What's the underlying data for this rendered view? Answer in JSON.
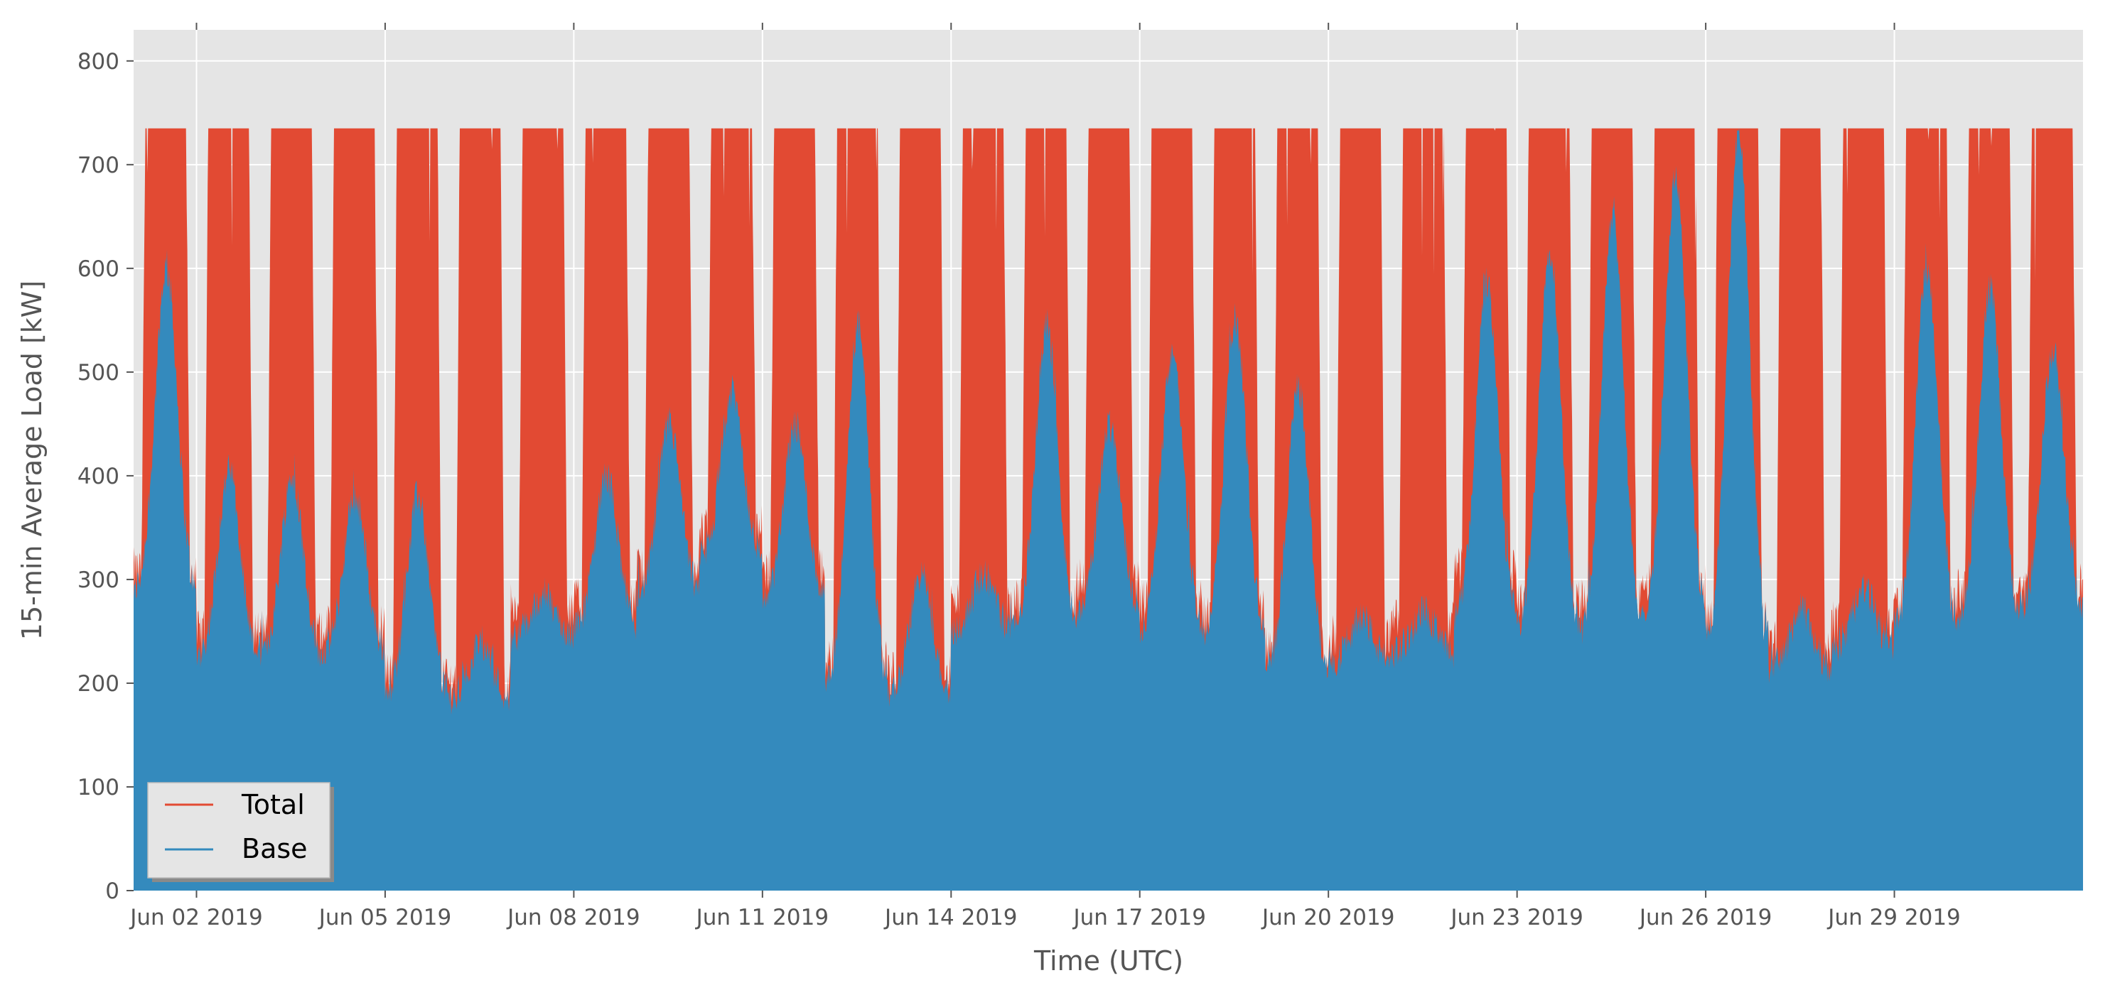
{
  "chart_data": {
    "type": "area",
    "title": "",
    "xlabel": "Time (UTC)",
    "ylabel": "15-min Average Load [kW]",
    "ylim": [
      0,
      830
    ],
    "xlim": [
      "2019-06-01",
      "2019-07-02"
    ],
    "yticks": [
      0,
      100,
      200,
      300,
      400,
      500,
      600,
      700,
      800
    ],
    "xticks": [
      {
        "date": "2019-06-02",
        "label": "Jun 02 2019"
      },
      {
        "date": "2019-06-05",
        "label": "Jun 05 2019"
      },
      {
        "date": "2019-06-08",
        "label": "Jun 08 2019"
      },
      {
        "date": "2019-06-11",
        "label": "Jun 11 2019"
      },
      {
        "date": "2019-06-14",
        "label": "Jun 14 2019"
      },
      {
        "date": "2019-06-17",
        "label": "Jun 17 2019"
      },
      {
        "date": "2019-06-20",
        "label": "Jun 20 2019"
      },
      {
        "date": "2019-06-23",
        "label": "Jun 23 2019"
      },
      {
        "date": "2019-06-26",
        "label": "Jun 26 2019"
      },
      {
        "date": "2019-06-29",
        "label": "Jun 29 2019"
      }
    ],
    "grid": true,
    "legend_position": "lower-left",
    "series": [
      {
        "name": "Total",
        "color": "#e24a33",
        "description": "Daily peak capped near 735 kW; overnight minimum per day",
        "daily_peak": 735,
        "daily_min": [
          300,
          240,
          240,
          245,
          200,
          195,
          265,
          270,
          300,
          340,
          300,
          215,
          200,
          270,
          270,
          290,
          270,
          260,
          225,
          235,
          250,
          300,
          270,
          270,
          285,
          250,
          230,
          250,
          270,
          280,
          285
        ]
      },
      {
        "name": "Base",
        "color": "#348abd",
        "description": "Daily peak and overnight minimum per day",
        "daily_peak": [
          600,
          405,
          400,
          380,
          380,
          240,
          285,
          400,
          450,
          480,
          450,
          545,
          305,
          305,
          545,
          450,
          520,
          550,
          485,
          265,
          270,
          585,
          620,
          655,
          690,
          730,
          270,
          290,
          600,
          580,
          520
        ],
        "daily_min": [
          285,
          225,
          225,
          230,
          190,
          185,
          245,
          255,
          285,
          320,
          280,
          195,
          190,
          250,
          255,
          270,
          250,
          245,
          210,
          220,
          230,
          260,
          250,
          245,
          265,
          240,
          215,
          235,
          255,
          260,
          270
        ]
      }
    ]
  }
}
